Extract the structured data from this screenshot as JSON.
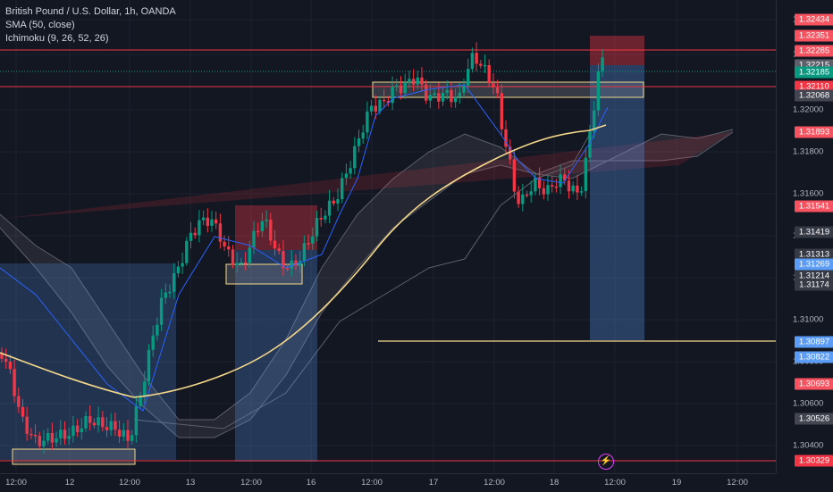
{
  "legend": {
    "symbol": "British Pound / U.S. Dollar, 1h, OANDA",
    "sma": "SMA (50, close)",
    "ichimoku": "Ichimoku (9, 26, 52, 26)"
  },
  "price_ticks": [
    "1.32400",
    "1.32200",
    "1.32000",
    "1.31800",
    "1.31600",
    "1.31400",
    "1.31200",
    "1.31000",
    "1.30800",
    "1.30600",
    "1.30400"
  ],
  "price_tags": [
    {
      "label": "1.32434",
      "color": "#f7525f"
    },
    {
      "label": "1.32351",
      "color": "#f7525f"
    },
    {
      "label": "1.32285",
      "color": "#f7525f"
    },
    {
      "label": "1.32215",
      "color": "#5d606b"
    },
    {
      "label": "1.32185",
      "color": "#089981"
    },
    {
      "label": "1.32110",
      "color": "#f23645"
    },
    {
      "label": "1.32068",
      "color": "#434651"
    },
    {
      "label": "1.31893",
      "color": "#f7525f"
    },
    {
      "label": "1.31541",
      "color": "#f7525f"
    },
    {
      "label": "1.31419",
      "color": "#363a45"
    },
    {
      "label": "1.31313",
      "color": "#363a45"
    },
    {
      "label": "1.31269",
      "color": "#5b9cf6"
    },
    {
      "label": "1.31214",
      "color": "#363a45"
    },
    {
      "label": "1.31174",
      "color": "#363a45"
    },
    {
      "label": "1.30897",
      "color": "#5b9cf6"
    },
    {
      "label": "1.30822",
      "color": "#5b9cf6"
    },
    {
      "label": "1.30693",
      "color": "#f7525f"
    },
    {
      "label": "1.30526",
      "color": "#434651"
    },
    {
      "label": "1.30329",
      "color": "#f23645"
    }
  ],
  "time_ticks": [
    "12:00",
    "12",
    "12:00",
    "13",
    "12:00",
    "16",
    "12:00",
    "17",
    "12:00",
    "18",
    "12:00",
    "19",
    "12:00"
  ],
  "colors": {
    "up": "#089981",
    "down": "#f23645",
    "sma": "#f5d88a",
    "kijun": "#2962ff",
    "level_line": "#f23645",
    "target_line": "#f5d88a",
    "zone_border": "#f5d88a"
  },
  "icons": {
    "lightning": "lightning-icon"
  }
}
